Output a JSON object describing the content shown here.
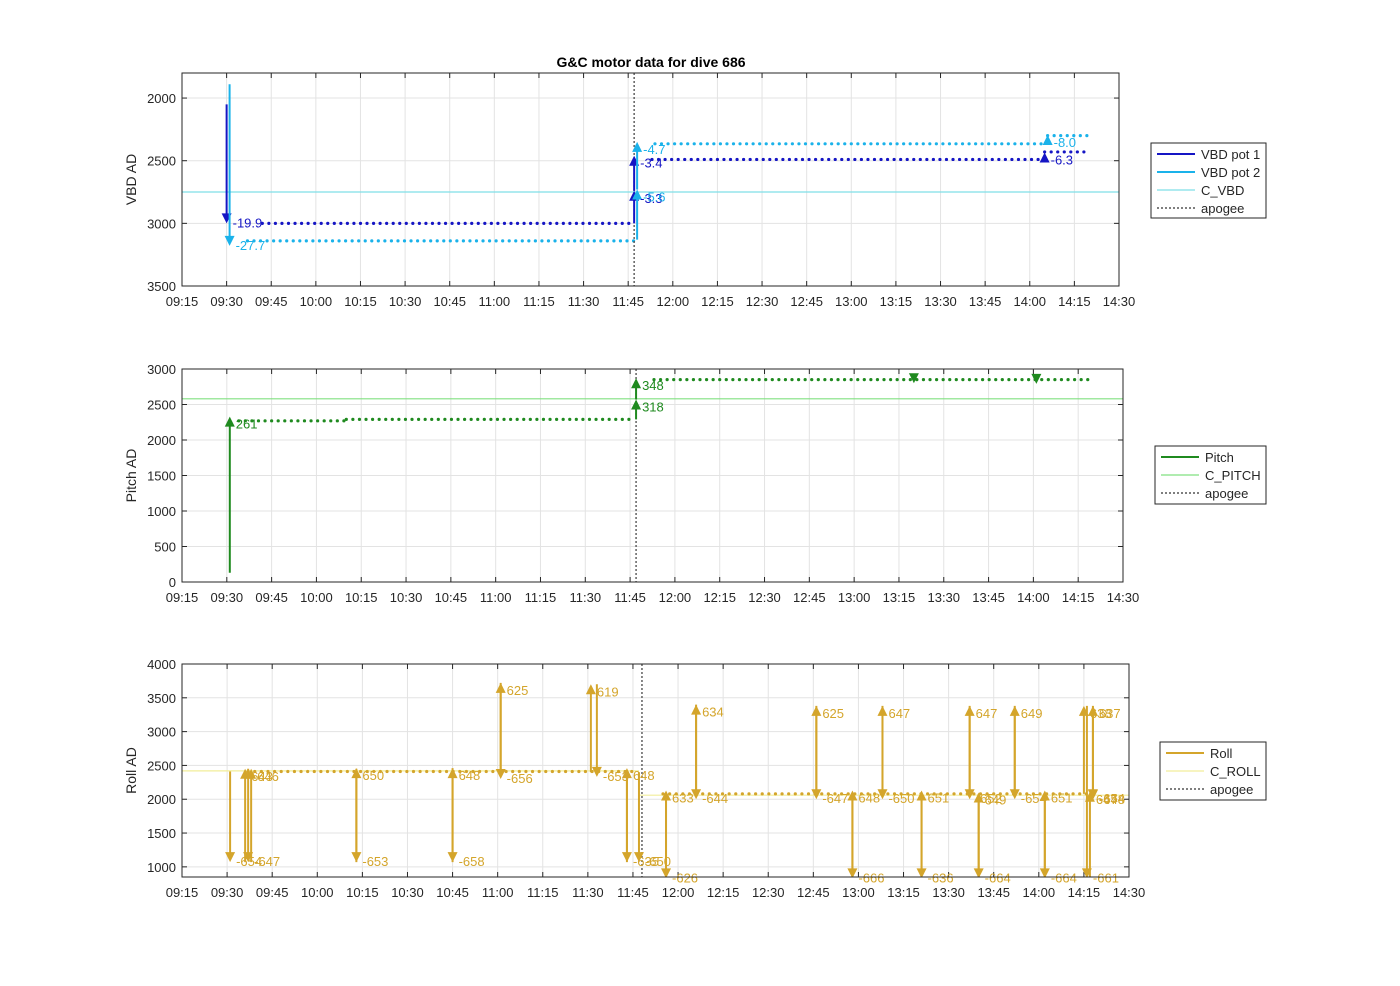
{
  "figure_title": "G&C motor data for dive 686",
  "colors": {
    "vbd1": "#1515c4",
    "vbd2": "#1ab2ea",
    "c_vbd": "#7fdfe8",
    "pitch": "#1f8a1f",
    "c_pitch": "#80e080",
    "roll": "#d4a52b",
    "c_roll": "#f2ee9a",
    "apogee": "#555555",
    "grid": "#e3e3e3"
  },
  "chart_data": [
    {
      "type": "line",
      "title": "G&C motor data for dive 686",
      "ylabel": "VBD AD",
      "ylim": [
        3500,
        1800
      ],
      "y_reversed": true,
      "yticks": [
        "2000",
        "2500",
        "3000",
        "3500"
      ],
      "xlim": [
        "09:15",
        "14:30"
      ],
      "xticks": [
        "09:15",
        "09:30",
        "09:45",
        "10:00",
        "10:15",
        "10:30",
        "10:45",
        "11:00",
        "11:15",
        "11:30",
        "11:45",
        "12:00",
        "12:15",
        "12:30",
        "12:45",
        "13:00",
        "13:15",
        "13:30",
        "13:45",
        "14:00",
        "14:15",
        "14:30"
      ],
      "grid": true,
      "legend_placement": "outside-right",
      "legend": [
        "VBD pot 1",
        "VBD pot 2",
        "C_VBD",
        "apogee"
      ],
      "series": [
        {
          "name": "VBD pot 1",
          "dotted_segments": [
            {
              "from": "09:42",
              "to": "11:47",
              "value": 3000
            },
            {
              "from": "11:53",
              "to": "14:05",
              "value": 2490
            },
            {
              "from": "14:05",
              "to": "14:20",
              "value": 2430
            }
          ]
        },
        {
          "name": "VBD pot 2",
          "dotted_segments": [
            {
              "from": "09:37",
              "to": "11:47",
              "value": 3140
            },
            {
              "from": "11:54",
              "to": "14:06",
              "value": 2365
            },
            {
              "from": "14:06",
              "to": "14:20",
              "value": 2300
            }
          ]
        }
      ],
      "arrows": [
        {
          "series": "VBD pot 1",
          "t": "09:30",
          "from": 2050,
          "to": 3000,
          "label": "-19.9"
        },
        {
          "series": "VBD pot 2",
          "t": "09:31",
          "from": 1890,
          "to": 3180,
          "label": "-27.7"
        },
        {
          "series": "VBD pot 1",
          "t": "11:47",
          "from": 3000,
          "to": 2740,
          "label": "-3.3"
        },
        {
          "series": "VBD pot 1",
          "t": "11:47",
          "from": 2740,
          "to": 2460,
          "label": "-3.4"
        },
        {
          "series": "VBD pot 2",
          "t": "11:48",
          "from": 3130,
          "to": 2730,
          "label": "-5.6"
        },
        {
          "series": "VBD pot 2",
          "t": "11:48",
          "from": 2730,
          "to": 2350,
          "label": "-4.7"
        },
        {
          "series": "VBD pot 1",
          "t": "14:05",
          "from": 2485,
          "to": 2435,
          "label": "-6.3"
        },
        {
          "series": "VBD pot 2",
          "t": "14:06",
          "from": 2360,
          "to": 2295,
          "label": "-8.0"
        }
      ],
      "hlines": [
        {
          "name": "C_VBD",
          "value": 2750
        }
      ],
      "vlines": [
        {
          "name": "apogee",
          "t": "11:47"
        }
      ]
    },
    {
      "type": "line",
      "ylabel": "Pitch AD",
      "ylim": [
        0,
        3000
      ],
      "yticks": [
        "0",
        "500",
        "1000",
        "1500",
        "2000",
        "2500",
        "3000"
      ],
      "xlim": [
        "09:15",
        "14:30"
      ],
      "xticks": [
        "09:15",
        "09:30",
        "09:45",
        "10:00",
        "10:15",
        "10:30",
        "10:45",
        "11:00",
        "11:15",
        "11:30",
        "11:45",
        "12:00",
        "12:15",
        "12:30",
        "12:45",
        "13:00",
        "13:15",
        "13:30",
        "13:45",
        "14:00",
        "14:15",
        "14:30"
      ],
      "grid": true,
      "legend_placement": "outside-right",
      "legend": [
        "Pitch",
        "C_PITCH",
        "apogee"
      ],
      "series": [
        {
          "name": "Pitch",
          "dotted_segments": [
            {
              "from": "09:34",
              "to": "10:10",
              "value": 2270
            },
            {
              "from": "10:10",
              "to": "11:46",
              "value": 2290
            },
            {
              "from": "11:53",
              "to": "14:20",
              "value": 2850
            }
          ]
        }
      ],
      "arrows": [
        {
          "series": "Pitch",
          "t": "09:31",
          "from": 130,
          "to": 2330,
          "label": "261"
        },
        {
          "series": "Pitch",
          "t": "11:47",
          "from": 2290,
          "to": 2570,
          "label": "318"
        },
        {
          "series": "Pitch",
          "t": "11:47",
          "from": 2570,
          "to": 2870,
          "label": "348"
        },
        {
          "series": "Pitch",
          "t": "13:20",
          "from": 2870,
          "to": 2800,
          "label": ""
        },
        {
          "series": "Pitch",
          "t": "14:01",
          "from": 2870,
          "to": 2790,
          "label": ""
        }
      ],
      "hlines": [
        {
          "name": "C_PITCH",
          "value": 2580
        }
      ],
      "vlines": [
        {
          "name": "apogee",
          "t": "11:47"
        }
      ]
    },
    {
      "type": "line",
      "ylabel": "Roll AD",
      "ylim": [
        850,
        4000
      ],
      "yticks": [
        "1000",
        "1500",
        "2000",
        "2500",
        "3000",
        "3500",
        "4000"
      ],
      "xlim": [
        "09:15",
        "14:30"
      ],
      "xticks": [
        "09:15",
        "09:30",
        "09:45",
        "10:00",
        "10:15",
        "10:30",
        "10:45",
        "11:00",
        "11:15",
        "11:30",
        "11:45",
        "12:00",
        "12:15",
        "12:30",
        "12:45",
        "13:00",
        "13:15",
        "13:30",
        "13:45",
        "14:00",
        "14:15",
        "14:30"
      ],
      "grid": true,
      "legend_placement": "outside-right",
      "legend": [
        "Roll",
        "C_ROLL",
        "apogee"
      ],
      "series": [
        {
          "name": "Roll",
          "dotted_segments": [
            {
              "from": "09:37",
              "to": "11:46",
              "value": 2410
            },
            {
              "from": "11:55",
              "to": "14:20",
              "value": 2080
            }
          ]
        }
      ],
      "arrows": [
        {
          "series": "Roll",
          "t": "09:31",
          "from": 2410,
          "to": 1070,
          "label": "-654"
        },
        {
          "series": "Roll",
          "t": "09:36",
          "from": 1070,
          "to": 2450,
          "label": "643"
        },
        {
          "series": "Roll",
          "t": "09:37",
          "from": 2450,
          "to": 1070,
          "label": "-647"
        },
        {
          "series": "Roll",
          "t": "09:38",
          "from": 1070,
          "to": 2450,
          "label": "646"
        },
        {
          "series": "Roll",
          "t": "10:13",
          "from": 2450,
          "to": 1070,
          "label": "-653"
        },
        {
          "series": "Roll",
          "t": "10:13",
          "from": 1070,
          "to": 2460,
          "label": "650"
        },
        {
          "series": "Roll",
          "t": "10:45",
          "from": 2460,
          "to": 1070,
          "label": "-658"
        },
        {
          "series": "Roll",
          "t": "10:45",
          "from": 1070,
          "to": 2460,
          "label": "648"
        },
        {
          "series": "Roll",
          "t": "11:01",
          "from": 2400,
          "to": 3720,
          "label": "625"
        },
        {
          "series": "Roll",
          "t": "11:01",
          "from": 3720,
          "to": 2300,
          "label": "-656"
        },
        {
          "series": "Roll",
          "t": "11:31",
          "from": 2400,
          "to": 3700,
          "label": "619"
        },
        {
          "series": "Roll",
          "t": "11:33",
          "from": 3700,
          "to": 2330,
          "label": "-653"
        },
        {
          "series": "Roll",
          "t": "11:43",
          "from": 2400,
          "to": 1070,
          "label": "-635"
        },
        {
          "series": "Roll",
          "t": "11:43",
          "from": 1070,
          "to": 2460,
          "label": "648"
        },
        {
          "series": "Roll",
          "t": "11:47",
          "from": 2400,
          "to": 1070,
          "label": "-650"
        },
        {
          "series": "Roll",
          "t": "11:56",
          "from": 2080,
          "to": 830,
          "label": "-626"
        },
        {
          "series": "Roll",
          "t": "11:56",
          "from": 830,
          "to": 2130,
          "label": "633"
        },
        {
          "series": "Roll",
          "t": "12:06",
          "from": 2080,
          "to": 3400,
          "label": "634"
        },
        {
          "series": "Roll",
          "t": "12:06",
          "from": 3400,
          "to": 2000,
          "label": "-644"
        },
        {
          "series": "Roll",
          "t": "12:46",
          "from": 2080,
          "to": 3380,
          "label": "625"
        },
        {
          "series": "Roll",
          "t": "12:46",
          "from": 3380,
          "to": 2000,
          "label": "-647"
        },
        {
          "series": "Roll",
          "t": "12:58",
          "from": 2080,
          "to": 830,
          "label": "-666"
        },
        {
          "series": "Roll",
          "t": "12:58",
          "from": 830,
          "to": 2130,
          "label": "648"
        },
        {
          "series": "Roll",
          "t": "13:08",
          "from": 2080,
          "to": 3380,
          "label": "647"
        },
        {
          "series": "Roll",
          "t": "13:08",
          "from": 3380,
          "to": 2000,
          "label": "-650"
        },
        {
          "series": "Roll",
          "t": "13:21",
          "from": 2080,
          "to": 830,
          "label": "-636"
        },
        {
          "series": "Roll",
          "t": "13:21",
          "from": 830,
          "to": 2130,
          "label": "651"
        },
        {
          "series": "Roll",
          "t": "13:37",
          "from": 2080,
          "to": 3380,
          "label": "647"
        },
        {
          "series": "Roll",
          "t": "13:37",
          "from": 3380,
          "to": 2000,
          "label": "-652"
        },
        {
          "series": "Roll",
          "t": "13:40",
          "from": 2080,
          "to": 830,
          "label": "-664"
        },
        {
          "series": "Roll",
          "t": "13:40",
          "from": 830,
          "to": 2100,
          "label": "649"
        },
        {
          "series": "Roll",
          "t": "13:52",
          "from": 2080,
          "to": 3380,
          "label": "649"
        },
        {
          "series": "Roll",
          "t": "13:52",
          "from": 3380,
          "to": 2000,
          "label": "-654"
        },
        {
          "series": "Roll",
          "t": "14:02",
          "from": 2080,
          "to": 830,
          "label": "-664"
        },
        {
          "series": "Roll",
          "t": "14:02",
          "from": 830,
          "to": 2130,
          "label": "651"
        },
        {
          "series": "Roll",
          "t": "14:15",
          "from": 2080,
          "to": 3380,
          "label": "638"
        },
        {
          "series": "Roll",
          "t": "14:16",
          "from": 3380,
          "to": 830,
          "label": "-661"
        },
        {
          "series": "Roll",
          "t": "14:17",
          "from": 830,
          "to": 2110,
          "label": "647"
        },
        {
          "series": "Roll",
          "t": "14:18",
          "from": 2080,
          "to": 3380,
          "label": "637"
        },
        {
          "series": "Roll",
          "t": "14:18",
          "from": 3380,
          "to": 2000,
          "label": "-654"
        },
        {
          "series": "Roll",
          "t": "14:18",
          "from": 2080,
          "to": 1990,
          "label": "-648"
        }
      ],
      "hlines": [
        {
          "name": "C_ROLL",
          "value": 2420,
          "to": "11:47"
        },
        {
          "name": "C_ROLL",
          "value": 2060,
          "from": "11:47"
        }
      ],
      "vlines": [
        {
          "name": "apogee",
          "t": "11:48"
        }
      ]
    }
  ]
}
